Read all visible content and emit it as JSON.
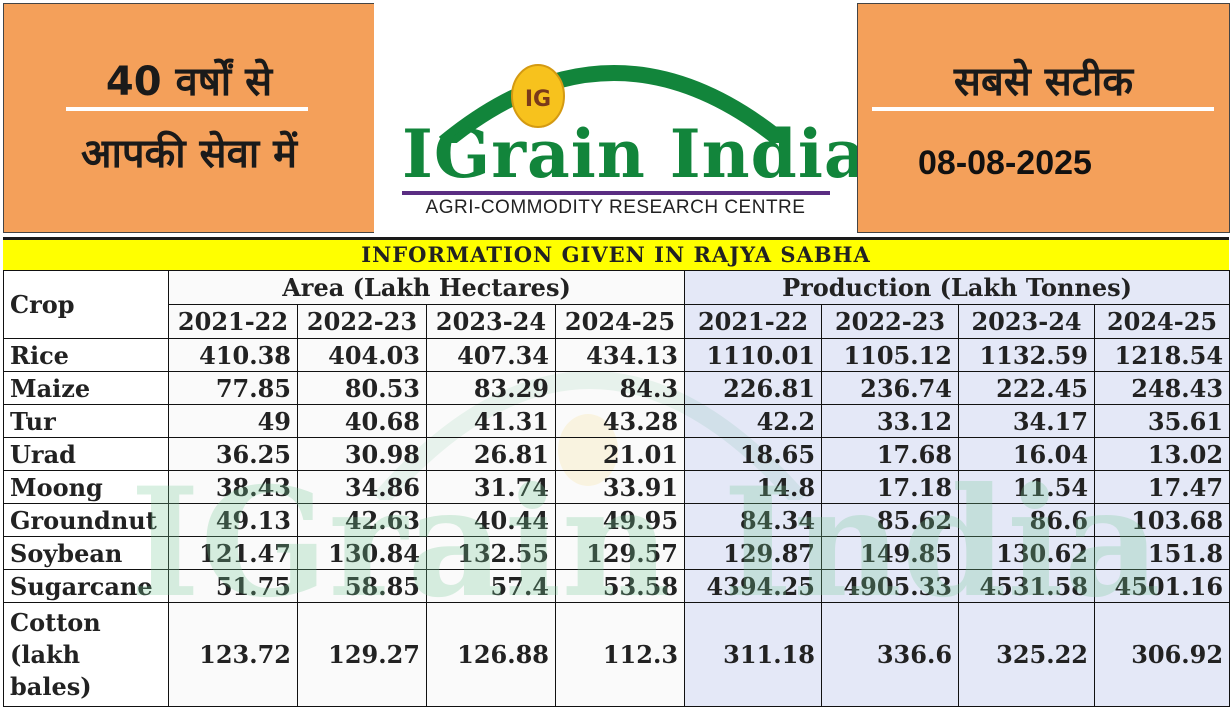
{
  "header": {
    "left_line1": "40 वर्षों से",
    "left_line2": "आपकी सेवा में",
    "right_line1": "सबसे सटीक",
    "date": "08-08-2025",
    "logo_text": "IGrain India",
    "logo_badge": "IG",
    "logo_subtitle": "AGRI-COMMODITY RESEARCH CENTRE",
    "colors": {
      "orange": "#f4a05a",
      "logo_green": "#12853b",
      "purple": "#5a2d82",
      "banner_yellow": "#ffff00"
    }
  },
  "banner": {
    "title": "INFORMATION GIVEN IN RAJYA SABHA"
  },
  "table": {
    "crop_header": "Crop",
    "area_header": "Area (Lakh Hectares)",
    "production_header": "Production (Lakh Tonnes)",
    "years": [
      "2021-22",
      "2022-23",
      "2023-24",
      "2024-25"
    ],
    "rows": [
      {
        "crop": "Rice",
        "area": [
          "410.38",
          "404.03",
          "407.34",
          "434.13"
        ],
        "production": [
          "1110.01",
          "1105.12",
          "1132.59",
          "1218.54"
        ]
      },
      {
        "crop": "Maize",
        "area": [
          "77.85",
          "80.53",
          "83.29",
          "84.3"
        ],
        "production": [
          "226.81",
          "236.74",
          "222.45",
          "248.43"
        ]
      },
      {
        "crop": "Tur",
        "area": [
          "49",
          "40.68",
          "41.31",
          "43.28"
        ],
        "production": [
          "42.2",
          "33.12",
          "34.17",
          "35.61"
        ]
      },
      {
        "crop": "Urad",
        "area": [
          "36.25",
          "30.98",
          "26.81",
          "21.01"
        ],
        "production": [
          "18.65",
          "17.68",
          "16.04",
          "13.02"
        ]
      },
      {
        "crop": "Moong",
        "area": [
          "38.43",
          "34.86",
          "31.74",
          "33.91"
        ],
        "production": [
          "14.8",
          "17.18",
          "11.54",
          "17.47"
        ]
      },
      {
        "crop": "Groundnut",
        "area": [
          "49.13",
          "42.63",
          "40.44",
          "49.95"
        ],
        "production": [
          "84.34",
          "85.62",
          "86.6",
          "103.68"
        ]
      },
      {
        "crop": "Soybean",
        "area": [
          "121.47",
          "130.84",
          "132.55",
          "129.57"
        ],
        "production": [
          "129.87",
          "149.85",
          "130.62",
          "151.8"
        ]
      },
      {
        "crop": "Sugarcane",
        "area": [
          "51.75",
          "58.85",
          "57.4",
          "53.58"
        ],
        "production": [
          "4394.25",
          "4905.33",
          "4531.58",
          "4501.16"
        ]
      }
    ],
    "cotton": {
      "crop_line1": "Cotton",
      "crop_line2": "(lakh",
      "crop_line3": "bales)",
      "area": [
        "123.72",
        "129.27",
        "126.88",
        "112.3"
      ],
      "production": [
        "311.18",
        "336.6",
        "325.22",
        "306.92"
      ]
    }
  },
  "watermark": {
    "text": "IGrain India"
  }
}
